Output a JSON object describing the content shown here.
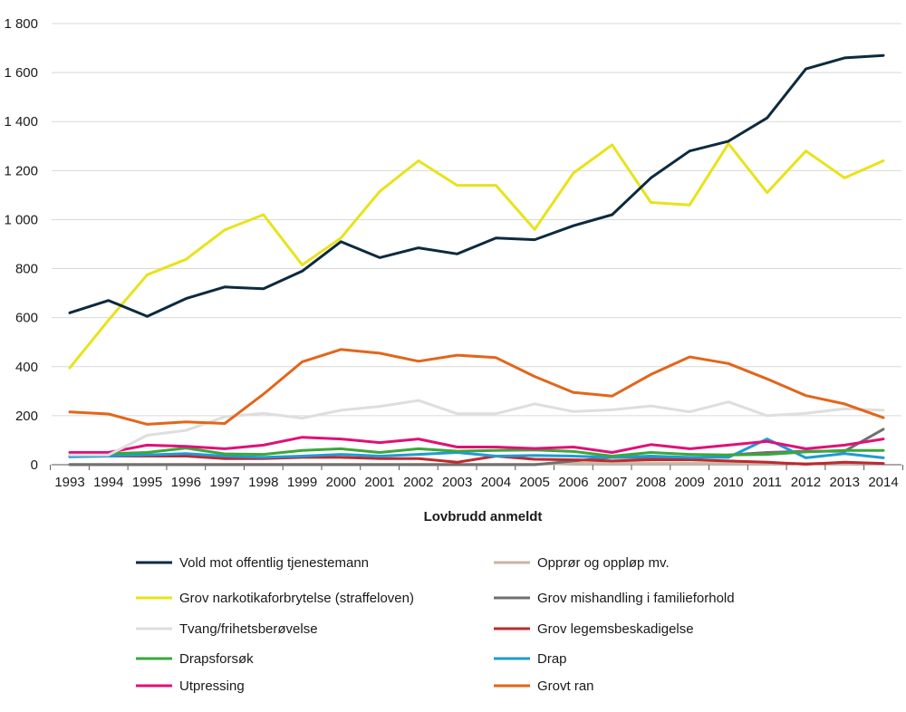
{
  "chart_data": {
    "type": "line",
    "title": "",
    "xlabel": "Lovbrudd anmeldt",
    "ylabel": "",
    "ylim": [
      0,
      1800
    ],
    "yticks": [
      0,
      200,
      400,
      600,
      800,
      1000,
      1200,
      1400,
      1600,
      1800
    ],
    "ytick_labels": [
      "0",
      "200",
      "400",
      "600",
      "800",
      "1 000",
      "1 200",
      "1 400",
      "1 600",
      "1 800"
    ],
    "grid": "horizontal",
    "legend_position": "bottom",
    "x": [
      "1993",
      "1994",
      "1995",
      "1996",
      "1997",
      "1998",
      "1999",
      "2000",
      "2001",
      "2002",
      "2003",
      "2004",
      "2005",
      "2006",
      "2007",
      "2008",
      "2009",
      "2010",
      "2011",
      "2012",
      "2013",
      "2014"
    ],
    "series": [
      {
        "name": "Vold mot offentlig tjenestemann",
        "color": "#0d2a3e",
        "values": [
          620,
          670,
          605,
          678,
          725,
          718,
          790,
          910,
          845,
          885,
          860,
          925,
          918,
          975,
          1020,
          1170,
          1280,
          1320,
          1415,
          1615,
          1660,
          1670
        ]
      },
      {
        "name": "Grov narkotikaforbrytelse (straffeloven)",
        "color": "#e8e31a",
        "values": [
          395,
          590,
          775,
          838,
          958,
          1020,
          815,
          925,
          1115,
          1240,
          1140,
          1140,
          960,
          1190,
          1305,
          1070,
          1060,
          1310,
          1110,
          1280,
          1170,
          1240
        ]
      },
      {
        "name": "Tvang/frihetsberøvelse",
        "color": "#dedede",
        "values": [
          40,
          40,
          120,
          140,
          195,
          210,
          190,
          222,
          238,
          262,
          208,
          208,
          248,
          217,
          224,
          240,
          216,
          256,
          200,
          210,
          228,
          222
        ]
      },
      {
        "name": "Drapsforsøk",
        "color": "#3aa839",
        "values": [
          40,
          45,
          50,
          68,
          44,
          42,
          58,
          65,
          50,
          65,
          55,
          58,
          60,
          54,
          35,
          50,
          42,
          40,
          42,
          52,
          58,
          58
        ]
      },
      {
        "name": "Utpressing",
        "color": "#e0107a",
        "values": [
          50,
          50,
          80,
          75,
          65,
          80,
          112,
          105,
          90,
          105,
          72,
          72,
          66,
          72,
          50,
          82,
          65,
          80,
          95,
          65,
          80,
          105
        ]
      },
      {
        "name": "Opprør og oppløp mv.",
        "color": "#c8b6a0",
        "values": [
          2,
          2,
          2,
          2,
          2,
          2,
          2,
          2,
          2,
          2,
          2,
          2,
          2,
          5,
          5,
          5,
          5,
          5,
          5,
          5,
          5,
          5
        ]
      },
      {
        "name": "Grov mishandling i familieforhold",
        "color": "#707070",
        "values": [
          0,
          0,
          0,
          0,
          0,
          0,
          0,
          0,
          0,
          0,
          0,
          0,
          0,
          15,
          30,
          28,
          25,
          40,
          50,
          55,
          55,
          145
        ]
      },
      {
        "name": "Grov legemsbeskadigelse",
        "color": "#c0282e",
        "values": [
          35,
          35,
          35,
          35,
          25,
          25,
          30,
          30,
          25,
          25,
          10,
          35,
          22,
          20,
          15,
          20,
          20,
          15,
          10,
          2,
          10,
          5
        ]
      },
      {
        "name": "Drap",
        "color": "#1f9ad6",
        "values": [
          32,
          35,
          40,
          45,
          35,
          30,
          35,
          42,
          35,
          42,
          50,
          35,
          38,
          35,
          30,
          35,
          30,
          30,
          105,
          28,
          45,
          28
        ]
      },
      {
        "name": "Grovt ran",
        "color": "#e2661a",
        "values": [
          215,
          207,
          165,
          175,
          168,
          288,
          420,
          470,
          455,
          422,
          447,
          437,
          360,
          295,
          280,
          368,
          440,
          413,
          350,
          282,
          248,
          192
        ]
      }
    ],
    "legend_order": [
      "Vold mot offentlig tjenestemann",
      "Opprør og oppløp mv.",
      "Grov narkotikaforbrytelse (straffeloven)",
      "Grov mishandling i familieforhold",
      "Tvang/frihetsberøvelse",
      "Grov legemsbeskadigelse",
      "Drapsforsøk",
      "Drap",
      "Utpressing",
      "Grovt ran"
    ]
  }
}
